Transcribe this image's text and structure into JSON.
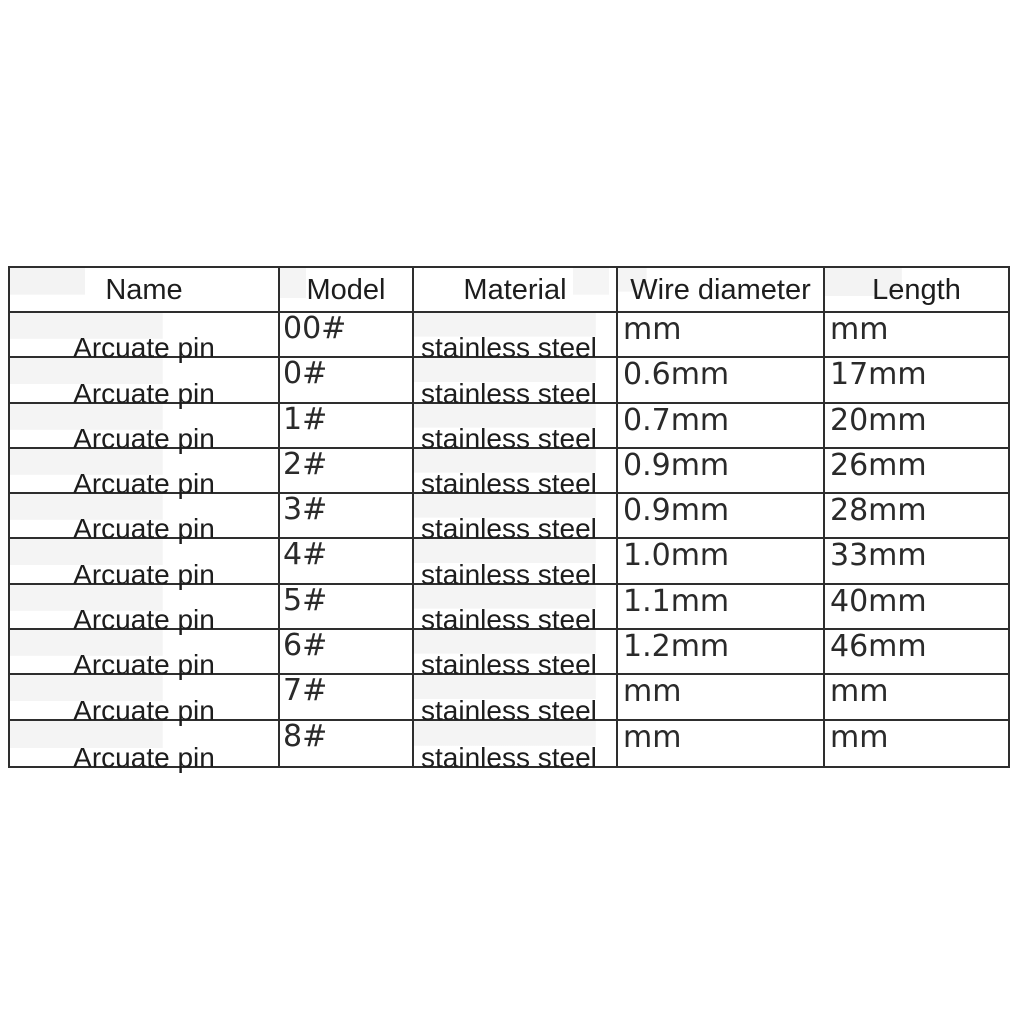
{
  "page": {
    "background_color": "#ffffff",
    "table_border_color": "#2e2e2e",
    "text_color": "#1d1d1d",
    "cell_patch_color": "#f4f4f4"
  },
  "table": {
    "headers": {
      "name": "Name",
      "model": "Model",
      "material": "Material",
      "wire": "Wire diameter",
      "length": "Length"
    },
    "rows": [
      {
        "name": "Arcuate pin",
        "model": "00#",
        "material": "stainless steel",
        "wire": "mm",
        "length": "mm"
      },
      {
        "name": "Arcuate pin",
        "model": "0#",
        "material": "stainless steel",
        "wire": "0.6mm",
        "length": "17mm"
      },
      {
        "name": "Arcuate pin",
        "model": "1#",
        "material": "stainless steel",
        "wire": "0.7mm",
        "length": "20mm"
      },
      {
        "name": "Arcuate pin",
        "model": "2#",
        "material": "stainless steel",
        "wire": "0.9mm",
        "length": "26mm"
      },
      {
        "name": "Arcuate pin",
        "model": "3#",
        "material": "stainless steel",
        "wire": "0.9mm",
        "length": "28mm"
      },
      {
        "name": "Arcuate pin",
        "model": "4#",
        "material": "stainless steel",
        "wire": "1.0mm",
        "length": "33mm"
      },
      {
        "name": "Arcuate pin",
        "model": "5#",
        "material": "stainless steel",
        "wire": "1.1mm",
        "length": "40mm"
      },
      {
        "name": "Arcuate pin",
        "model": "6#",
        "material": "stainless steel",
        "wire": "1.2mm",
        "length": "46mm"
      },
      {
        "name": "Arcuate pin",
        "model": "7#",
        "material": "stainless steel",
        "wire": "mm",
        "length": "mm"
      },
      {
        "name": "Arcuate pin",
        "model": "8#",
        "material": "stainless steel",
        "wire": "mm",
        "length": "mm"
      }
    ]
  }
}
